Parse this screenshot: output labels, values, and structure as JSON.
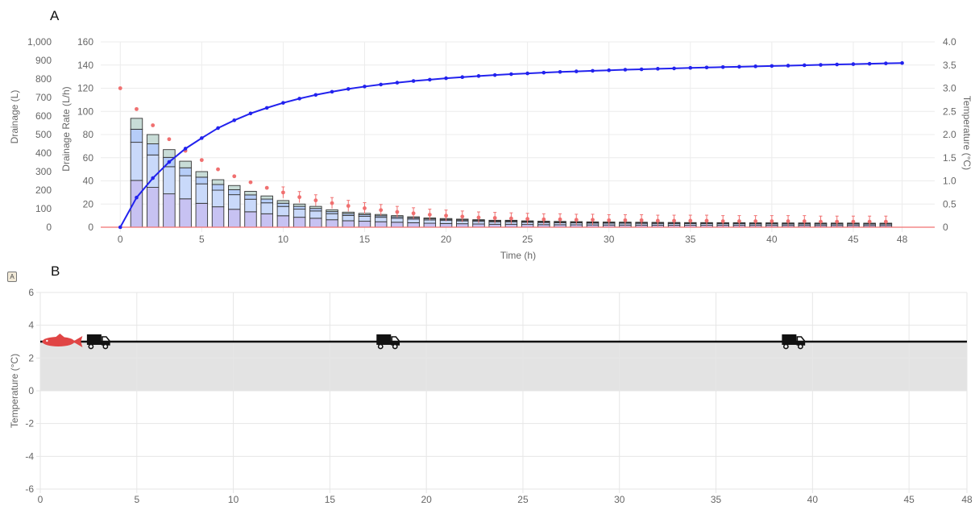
{
  "panels": {
    "a_label": "A",
    "b_label": "B",
    "mini_icon": "A"
  },
  "chart_data": [
    {
      "type": "bar",
      "panel": "A",
      "title": "",
      "xlabel": "Time (h)",
      "x_ticks": [
        0,
        5,
        10,
        15,
        20,
        25,
        30,
        35,
        40,
        45,
        48
      ],
      "xlim": [
        -1.2,
        50
      ],
      "y_axes": {
        "drainage": {
          "label": "Drainage (L)",
          "range": [
            0,
            1000
          ],
          "ticks": [
            "0",
            "100",
            "200",
            "300",
            "400",
            "500",
            "600",
            "700",
            "800",
            "900",
            "1,000"
          ]
        },
        "rate": {
          "label": "Drainage Rate (L/h)",
          "range": [
            0,
            160
          ],
          "ticks": [
            "0",
            "20",
            "40",
            "60",
            "80",
            "100",
            "120",
            "140",
            "160"
          ]
        },
        "temperature": {
          "label": "Temperature (°C)",
          "range": [
            0,
            4.0
          ],
          "ticks": [
            "0",
            "0.5",
            "1.0",
            "1.5",
            "2.0",
            "2.5",
            "3.0",
            "3.5",
            "4.0"
          ]
        }
      },
      "grid": true,
      "colors": {
        "cumulative": "#2222ee",
        "temperature": "#f07070",
        "bar_stroke": "#333333",
        "stack_fills": [
          "#c7c2f2",
          "#c9d9fa",
          "#b6cdf8",
          "#c8dcd7"
        ]
      },
      "series": {
        "stacked_bars": {
          "x": [
            1,
            2,
            3,
            4,
            5,
            6,
            7,
            8,
            9,
            10,
            11,
            12,
            13,
            14,
            15,
            16,
            17,
            18,
            19,
            20,
            21,
            22,
            23,
            24,
            25,
            26,
            27,
            28,
            29,
            30,
            31,
            32,
            33,
            34,
            35,
            36,
            37,
            38,
            39,
            40,
            41,
            42,
            43,
            44,
            45,
            46,
            47
          ],
          "totals": [
            94,
            80,
            67,
            57,
            48,
            41,
            36,
            31,
            27,
            23,
            20,
            18,
            15,
            13,
            12,
            11,
            10,
            9,
            8,
            7.5,
            7,
            6.5,
            6,
            6,
            5.5,
            5.2,
            5,
            4.8,
            4.6,
            4.5,
            4.4,
            4.3,
            4.2,
            4.1,
            4,
            4,
            3.9,
            3.9,
            3.8,
            3.8,
            3.7,
            3.7,
            3.6,
            3.6,
            3.6,
            3.5,
            3.5
          ],
          "split_fractions": [
            0.43,
            0.78,
            0.9
          ]
        },
        "cumulative": {
          "x": [
            0,
            1,
            2,
            3,
            4,
            5,
            6,
            7,
            8,
            9,
            10,
            11,
            12,
            13,
            14,
            15,
            16,
            17,
            18,
            19,
            20,
            21,
            22,
            23,
            24,
            25,
            26,
            27,
            28,
            29,
            30,
            31,
            32,
            33,
            34,
            35,
            36,
            37,
            38,
            39,
            40,
            41,
            42,
            43,
            44,
            45,
            46,
            47,
            48
          ],
          "values": [
            0,
            160,
            265,
            352,
            424,
            481,
            535,
            577,
            614,
            644,
            671,
            694,
            714,
            731,
            746,
            759,
            770,
            780,
            789,
            796,
            804,
            810,
            816,
            821,
            826,
            830,
            834,
            838,
            841,
            844,
            847,
            850,
            852,
            855,
            857,
            860,
            862,
            864,
            866,
            868,
            870,
            872,
            874,
            876,
            878,
            880,
            882,
            884,
            886
          ]
        },
        "temperature": {
          "x": [
            0,
            1,
            2,
            3,
            4,
            5,
            6,
            7,
            8,
            9,
            10,
            11,
            12,
            13,
            14,
            15,
            16,
            17,
            18,
            19,
            20,
            21,
            22,
            23,
            24,
            25,
            26,
            27,
            28,
            29,
            30,
            31,
            32,
            33,
            34,
            35,
            36,
            37,
            38,
            39,
            40,
            41,
            42,
            43,
            44,
            45,
            46,
            47
          ],
          "values": [
            3.0,
            2.55,
            2.2,
            1.9,
            1.65,
            1.45,
            1.25,
            1.1,
            0.97,
            0.85,
            0.75,
            0.65,
            0.58,
            0.52,
            0.46,
            0.41,
            0.37,
            0.33,
            0.3,
            0.27,
            0.25,
            0.23,
            0.21,
            0.2,
            0.19,
            0.18,
            0.17,
            0.17,
            0.16,
            0.16,
            0.15,
            0.15,
            0.15,
            0.14,
            0.14,
            0.14,
            0.14,
            0.13,
            0.13,
            0.13,
            0.13,
            0.13,
            0.13,
            0.12,
            0.12,
            0.12,
            0.12,
            0.12
          ],
          "error_bar_from": 10
        }
      }
    },
    {
      "type": "line",
      "panel": "B",
      "title": "",
      "xlabel": "",
      "ylabel": "Temperature (°C)",
      "x_ticks": [
        0,
        5,
        10,
        15,
        20,
        25,
        30,
        35,
        40,
        45,
        48
      ],
      "y_ticks": [
        -6,
        -4,
        -2,
        0,
        2,
        4,
        6
      ],
      "xlim": [
        0,
        48
      ],
      "ylim": [
        -6,
        6
      ],
      "grid": true,
      "band": {
        "from": 0,
        "to": 3,
        "color": "#e3e3e3"
      },
      "series": [
        {
          "x": [
            0,
            48
          ],
          "values": [
            3,
            3
          ],
          "color": "#111111"
        }
      ],
      "markers": [
        {
          "icon": "fish-icon",
          "x": 1.1,
          "y": 3,
          "color": "#e04545"
        },
        {
          "icon": "truck-icon",
          "x": 3.0,
          "y": 3
        },
        {
          "icon": "truck-icon",
          "x": 18.0,
          "y": 3
        },
        {
          "icon": "truck-icon",
          "x": 39.0,
          "y": 3
        }
      ]
    }
  ]
}
